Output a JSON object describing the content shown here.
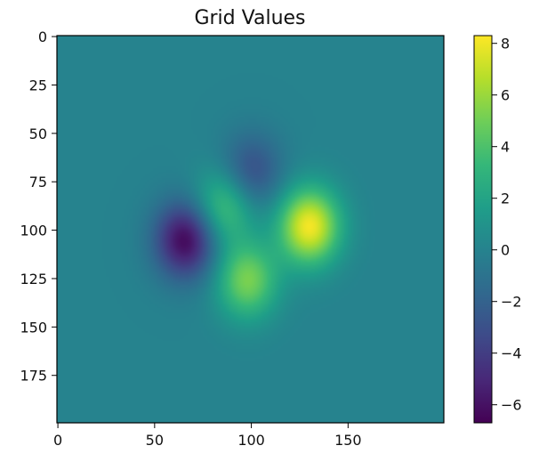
{
  "chart_data": {
    "type": "heatmap",
    "title": "Grid Values",
    "xlabel": "",
    "ylabel": "",
    "grid": {
      "shape": [
        200,
        200
      ],
      "xlim": [
        0,
        199
      ],
      "ylim": [
        199,
        0
      ],
      "baseline": 0,
      "features": [
        {
          "kind": "min",
          "x": 66,
          "y": 105,
          "value": -6.5
        },
        {
          "kind": "min",
          "x": 100,
          "y": 70,
          "value": -3.2
        },
        {
          "kind": "max",
          "x": 130,
          "y": 98,
          "value": 8.1
        },
        {
          "kind": "max",
          "x": 98,
          "y": 126,
          "value": 5.2
        },
        {
          "kind": "max",
          "x": 86,
          "y": 88,
          "value": 4.0
        }
      ]
    },
    "x_ticks": [
      0,
      50,
      100,
      150
    ],
    "x_tick_labels": [
      "0",
      "50",
      "100",
      "150"
    ],
    "y_ticks": [
      0,
      25,
      50,
      75,
      100,
      125,
      150,
      175
    ],
    "y_tick_labels": [
      "0",
      "25",
      "50",
      "75",
      "100",
      "125",
      "150",
      "175"
    ],
    "colorbar": {
      "colormap": "viridis",
      "min": -6.7,
      "max": 8.3,
      "ticks": [
        8,
        6,
        4,
        2,
        0,
        -2,
        -4,
        -6
      ],
      "tick_labels": [
        "8",
        "6",
        "4",
        "2",
        "0",
        "−2",
        "−4",
        "−6"
      ]
    },
    "colors": {
      "frame": "#000000",
      "viridis_stops": [
        "#440154",
        "#482878",
        "#3e4a89",
        "#31688e",
        "#26828e",
        "#1f9e89",
        "#35b779",
        "#6ece58",
        "#b5de2b",
        "#fde725"
      ]
    }
  }
}
